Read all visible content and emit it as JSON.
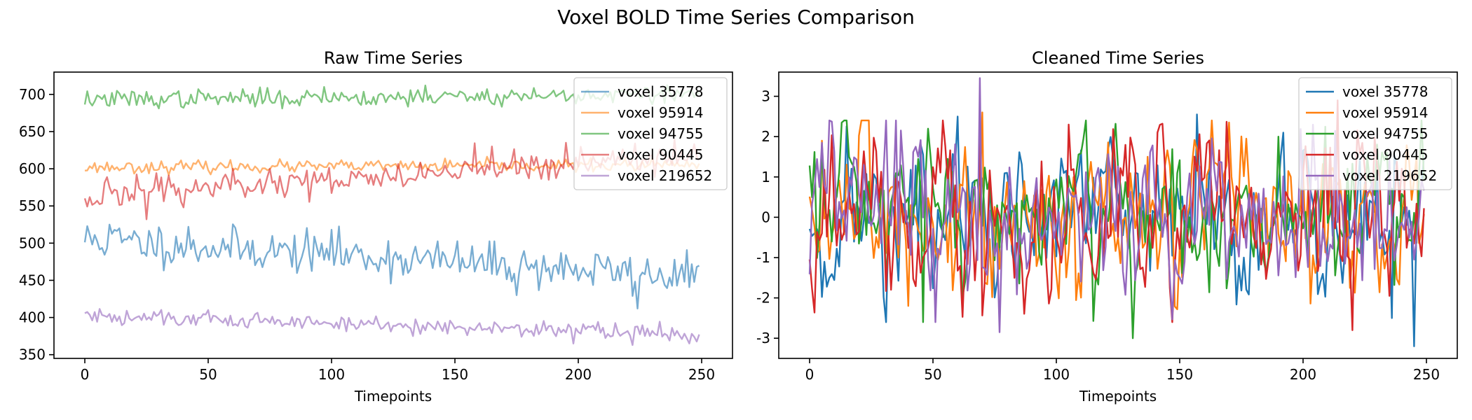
{
  "figure_title": "Voxel BOLD Time Series Comparison",
  "chart_data": [
    {
      "type": "line",
      "title": "Raw Time Series",
      "xlabel": "Timepoints",
      "ylabel": "",
      "xlim": [
        -12.5,
        262.5
      ],
      "ylim": [
        345,
        730
      ],
      "xticks": [
        0,
        50,
        100,
        150,
        200,
        250
      ],
      "yticks": [
        350,
        400,
        450,
        500,
        550,
        600,
        650,
        700
      ],
      "legend_position": "top-right",
      "line_alpha": 0.6,
      "n_points": 250,
      "series": [
        {
          "name": "voxel 35778",
          "color": "#1f77b4",
          "start": 505,
          "end": 455,
          "noise": 14,
          "seed": 11,
          "spikes": [
            [
              10,
              525
            ],
            [
              42,
              522
            ],
            [
              100,
              518
            ],
            [
              175,
              430
            ],
            [
              224,
              412
            ],
            [
              248,
              468
            ]
          ]
        },
        {
          "name": "voxel 95914",
          "color": "#ff7f0e",
          "start": 602,
          "end": 605,
          "noise": 4,
          "seed": 23,
          "spikes": []
        },
        {
          "name": "voxel 94755",
          "color": "#2ca02c",
          "start": 693,
          "end": 700,
          "noise": 6,
          "seed": 37,
          "spikes": [
            [
              3,
              685
            ],
            [
              97,
              710
            ],
            [
              138,
              712
            ]
          ]
        },
        {
          "name": "voxel 90445",
          "color": "#d62728",
          "start": 563,
          "end": 618,
          "noise": 10,
          "seed": 49,
          "spikes": [
            [
              25,
              532
            ],
            [
              40,
              548
            ],
            [
              75,
              600
            ],
            [
              165,
              630
            ],
            [
              195,
              635
            ]
          ]
        },
        {
          "name": "voxel 219652",
          "color": "#9467bd",
          "start": 402,
          "end": 378,
          "noise": 6,
          "seed": 61,
          "spikes": [
            [
              50,
              410
            ],
            [
              198,
              365
            ],
            [
              222,
              363
            ]
          ]
        }
      ]
    },
    {
      "type": "line",
      "title": "Cleaned Time Series",
      "xlabel": "Timepoints",
      "ylabel": "",
      "xlim": [
        -12.5,
        262.5
      ],
      "ylim": [
        -3.5,
        3.6
      ],
      "xticks": [
        0,
        50,
        100,
        150,
        200,
        250
      ],
      "yticks": [
        -3,
        -2,
        -1,
        0,
        1,
        2,
        3
      ],
      "legend_position": "top-right",
      "line_alpha": 1.0,
      "n_points": 250,
      "series": [
        {
          "name": "voxel 35778",
          "color": "#1f77b4",
          "start": 0,
          "end": 0,
          "noise": 1.0,
          "seed": 71,
          "spikes": [
            [
              60,
              2.5
            ],
            [
              157,
              2.55
            ],
            [
              245,
              -3.2
            ],
            [
              236,
              -2.5
            ]
          ]
        },
        {
          "name": "voxel 95914",
          "color": "#ff7f0e",
          "start": 0,
          "end": 0,
          "noise": 1.0,
          "seed": 83,
          "spikes": [
            [
              5,
              1.9
            ],
            [
              40,
              -2.2
            ],
            [
              70,
              2.6
            ]
          ]
        },
        {
          "name": "voxel 94755",
          "color": "#2ca02c",
          "start": 0,
          "end": 0,
          "noise": 1.0,
          "seed": 97,
          "spikes": [
            [
              5,
              1.8
            ],
            [
              46,
              -2.6
            ],
            [
              131,
              -3.0
            ],
            [
              190,
              2.0
            ]
          ]
        },
        {
          "name": "voxel 90445",
          "color": "#d62728",
          "start": 0,
          "end": 0,
          "noise": 1.0,
          "seed": 103,
          "spikes": [
            [
              69,
              2.2
            ],
            [
              105,
              2.3
            ],
            [
              214,
              2.9
            ],
            [
              220,
              -2.8
            ]
          ]
        },
        {
          "name": "voxel 219652",
          "color": "#9467bd",
          "start": 0,
          "end": 0,
          "noise": 1.0,
          "seed": 113,
          "spikes": [
            [
              69,
              3.45
            ],
            [
              37,
              2.15
            ],
            [
              77,
              -2.85
            ]
          ]
        }
      ]
    }
  ]
}
